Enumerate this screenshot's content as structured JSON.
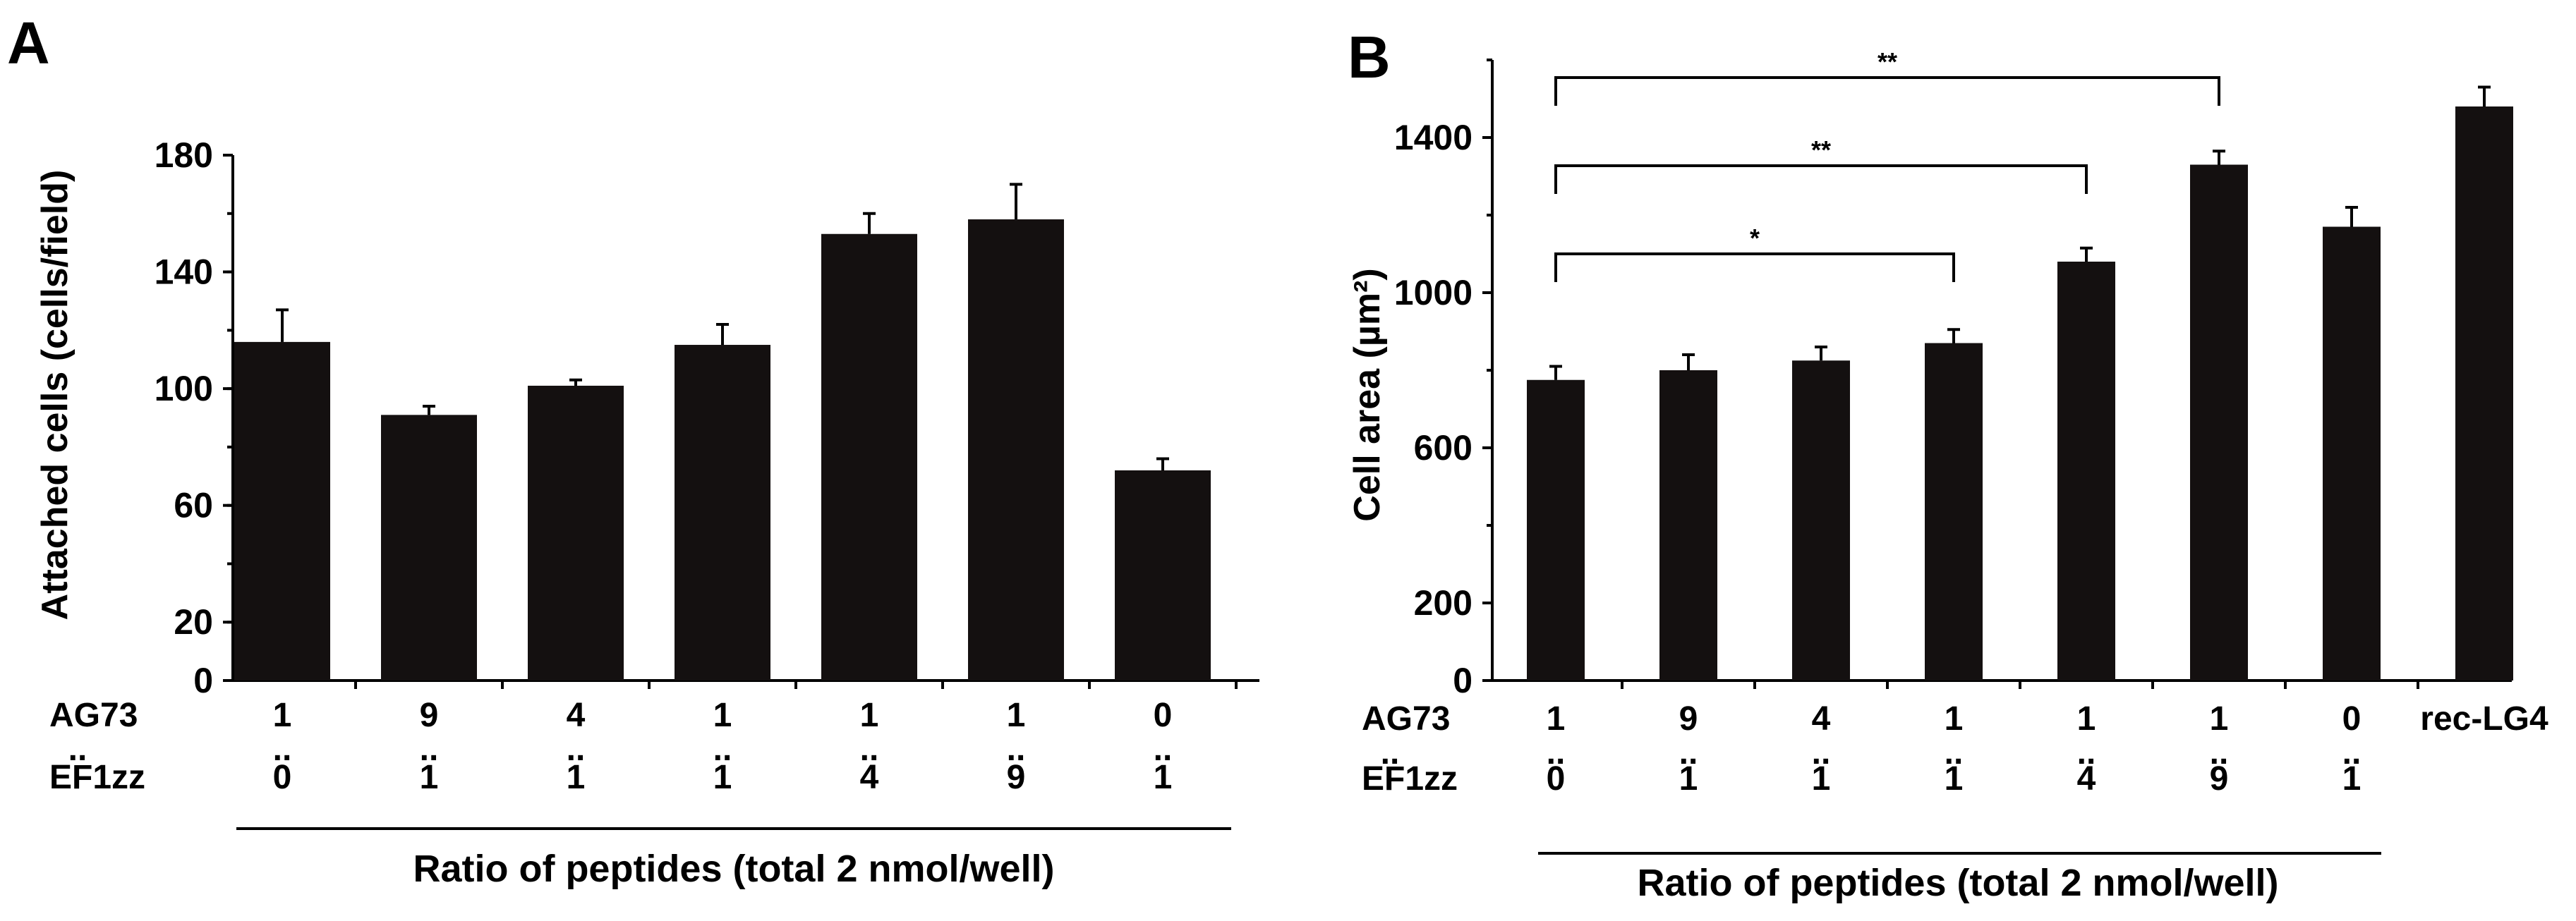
{
  "chart_data": [
    {
      "panel": "A",
      "type": "bar",
      "ylabel": "Attached cells (cells/field)",
      "xlabel": "Ratio of peptides (total 2 nmol/well)",
      "ylim": [
        0,
        180
      ],
      "yticks": [
        0,
        20,
        60,
        100,
        140,
        180
      ],
      "row_labels": [
        "AG73",
        "EF1zz"
      ],
      "separator": "..",
      "categories": [
        {
          "top": "1",
          "bottom": "0"
        },
        {
          "top": "9",
          "bottom": "1"
        },
        {
          "top": "4",
          "bottom": "1"
        },
        {
          "top": "1",
          "bottom": "1"
        },
        {
          "top": "1",
          "bottom": "4"
        },
        {
          "top": "1",
          "bottom": "9"
        },
        {
          "top": "0",
          "bottom": "1"
        }
      ],
      "values": [
        116,
        91,
        101,
        115,
        153,
        158,
        72
      ],
      "errors": [
        11,
        3,
        2,
        7,
        7,
        12,
        4
      ],
      "bar_color": "#141010",
      "grid": false
    },
    {
      "panel": "B",
      "type": "bar",
      "ylabel": "Cell area (µm²)",
      "xlabel": "Ratio of peptides (total 2 nmol/well)",
      "ylim": [
        0,
        1600
      ],
      "yticks": [
        0,
        200,
        600,
        1000,
        1400
      ],
      "row_labels": [
        "AG73",
        "EF1zz"
      ],
      "separator": "..",
      "categories": [
        {
          "top": "1",
          "bottom": "0"
        },
        {
          "top": "9",
          "bottom": "1"
        },
        {
          "top": "4",
          "bottom": "1"
        },
        {
          "top": "1",
          "bottom": "1"
        },
        {
          "top": "1",
          "bottom": "4"
        },
        {
          "top": "1",
          "bottom": "9"
        },
        {
          "top": "0",
          "bottom": "1"
        },
        {
          "top": "rec-LG4",
          "bottom": ""
        }
      ],
      "values": [
        775,
        800,
        825,
        870,
        1080,
        1330,
        1170,
        1480
      ],
      "errors": [
        35,
        40,
        35,
        35,
        35,
        35,
        50,
        50
      ],
      "significance": [
        {
          "from": 0,
          "to": 3,
          "label": "*"
        },
        {
          "from": 0,
          "to": 4,
          "label": "**"
        },
        {
          "from": 0,
          "to": 5,
          "label": "**"
        }
      ],
      "bar_color": "#141010",
      "grid": false
    }
  ]
}
